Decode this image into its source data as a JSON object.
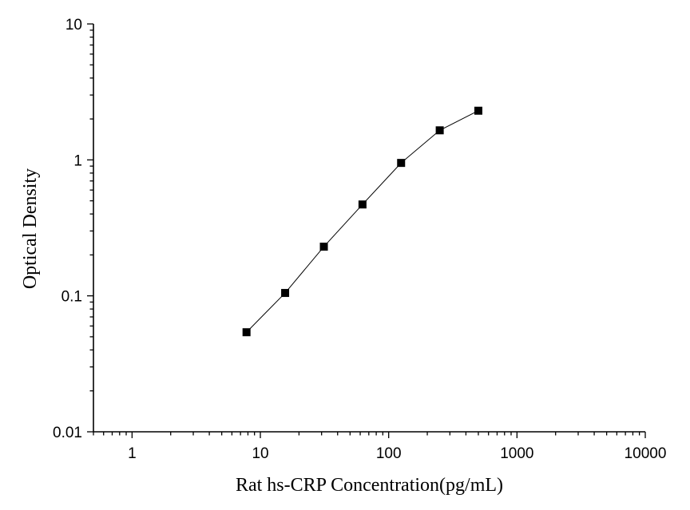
{
  "chart_data": {
    "type": "scatter",
    "xlabel": "Rat hs-CRP Concentration(pg/mL)",
    "ylabel": "Optical Density",
    "xscale": "log",
    "yscale": "log",
    "xlim": [
      0.5,
      10000
    ],
    "ylim": [
      0.01,
      10
    ],
    "xticks": [
      "1",
      "10",
      "100",
      "1000",
      "10000"
    ],
    "yticks": [
      "0.01",
      "0.1",
      "1",
      "10"
    ],
    "grid": false,
    "connected": true,
    "marker": "square",
    "color": "#000000",
    "series": [
      {
        "x": [
          7.8,
          15.6,
          31.25,
          62.5,
          125,
          250,
          500
        ],
        "y": [
          0.054,
          0.105,
          0.23,
          0.47,
          0.95,
          1.65,
          2.3
        ]
      }
    ]
  }
}
